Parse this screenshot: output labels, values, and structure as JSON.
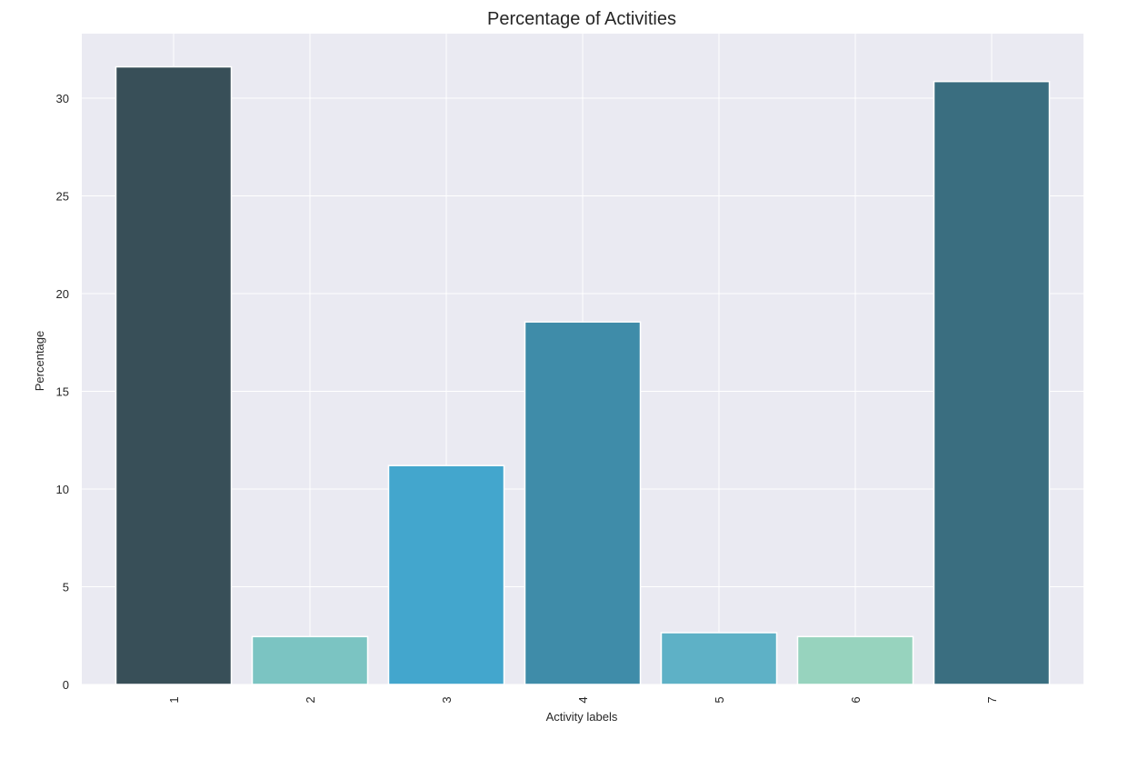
{
  "chart_data": {
    "type": "bar",
    "title": "Percentage of Activities",
    "xlabel": "Activity labels",
    "ylabel": "Percentage",
    "categories": [
      "1",
      "2",
      "3",
      "4",
      "5",
      "6",
      "7"
    ],
    "values": [
      31.6,
      2.45,
      11.2,
      18.55,
      2.65,
      2.45,
      30.85
    ],
    "ylim": [
      0,
      33.3
    ],
    "yticks": [
      0,
      5,
      10,
      15,
      20,
      25,
      30
    ],
    "x_tick_rotation": "vertical",
    "grid": true,
    "legend": "none",
    "colors": [
      "#384f58",
      "#7bc4c2",
      "#43a6cd",
      "#3f8ca9",
      "#5eb1c6",
      "#97d3be",
      "#3a6e80"
    ],
    "background_color": "#eaeaf2",
    "grid_color": "#ffffff"
  }
}
